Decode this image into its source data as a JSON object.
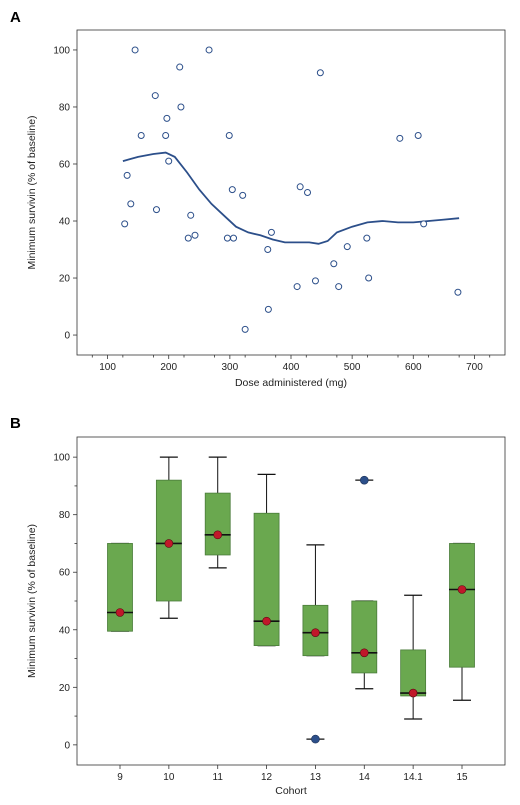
{
  "chart_data": [
    {
      "panel": "A",
      "type": "scatter",
      "xlabel": "Dose administered (mg)",
      "ylabel": "Minimum survivin (% of baseline)",
      "xlim": [
        50,
        750
      ],
      "ylim": [
        -7,
        107
      ],
      "xticks": [
        100,
        200,
        300,
        400,
        500,
        600,
        700
      ],
      "yticks": [
        0,
        20,
        40,
        60,
        80,
        100
      ],
      "grid": false,
      "colors": {
        "marker": "#2c4f8a",
        "curve": "#2c4f8a"
      },
      "points": [
        {
          "x": 128,
          "y": 39
        },
        {
          "x": 132,
          "y": 56
        },
        {
          "x": 138,
          "y": 46
        },
        {
          "x": 145,
          "y": 100
        },
        {
          "x": 155,
          "y": 70
        },
        {
          "x": 178,
          "y": 84
        },
        {
          "x": 180,
          "y": 44
        },
        {
          "x": 195,
          "y": 70
        },
        {
          "x": 197,
          "y": 76
        },
        {
          "x": 200,
          "y": 61
        },
        {
          "x": 218,
          "y": 94
        },
        {
          "x": 220,
          "y": 80
        },
        {
          "x": 232,
          "y": 34
        },
        {
          "x": 236,
          "y": 42
        },
        {
          "x": 243,
          "y": 35
        },
        {
          "x": 266,
          "y": 100
        },
        {
          "x": 296,
          "y": 34
        },
        {
          "x": 299,
          "y": 70
        },
        {
          "x": 304,
          "y": 51
        },
        {
          "x": 306,
          "y": 34
        },
        {
          "x": 321,
          "y": 49
        },
        {
          "x": 325,
          "y": 2
        },
        {
          "x": 362,
          "y": 30
        },
        {
          "x": 363,
          "y": 9
        },
        {
          "x": 368,
          "y": 36
        },
        {
          "x": 410,
          "y": 17
        },
        {
          "x": 415,
          "y": 52
        },
        {
          "x": 427,
          "y": 50
        },
        {
          "x": 440,
          "y": 19
        },
        {
          "x": 448,
          "y": 92
        },
        {
          "x": 470,
          "y": 25
        },
        {
          "x": 478,
          "y": 17
        },
        {
          "x": 492,
          "y": 31
        },
        {
          "x": 524,
          "y": 34
        },
        {
          "x": 527,
          "y": 20
        },
        {
          "x": 578,
          "y": 69
        },
        {
          "x": 608,
          "y": 70
        },
        {
          "x": 617,
          "y": 39
        },
        {
          "x": 673,
          "y": 15
        }
      ],
      "smooth_curve": [
        {
          "x": 125,
          "y": 61
        },
        {
          "x": 150,
          "y": 62.5
        },
        {
          "x": 175,
          "y": 63.5
        },
        {
          "x": 195,
          "y": 64
        },
        {
          "x": 210,
          "y": 62.5
        },
        {
          "x": 230,
          "y": 57
        },
        {
          "x": 250,
          "y": 51
        },
        {
          "x": 270,
          "y": 46
        },
        {
          "x": 290,
          "y": 42
        },
        {
          "x": 310,
          "y": 38
        },
        {
          "x": 330,
          "y": 36
        },
        {
          "x": 350,
          "y": 35
        },
        {
          "x": 370,
          "y": 33.5
        },
        {
          "x": 390,
          "y": 32.5
        },
        {
          "x": 410,
          "y": 32.5
        },
        {
          "x": 430,
          "y": 32.5
        },
        {
          "x": 445,
          "y": 32
        },
        {
          "x": 460,
          "y": 33
        },
        {
          "x": 475,
          "y": 36
        },
        {
          "x": 500,
          "y": 38
        },
        {
          "x": 525,
          "y": 39.5
        },
        {
          "x": 550,
          "y": 40
        },
        {
          "x": 575,
          "y": 39.5
        },
        {
          "x": 600,
          "y": 39.5
        },
        {
          "x": 625,
          "y": 40
        },
        {
          "x": 650,
          "y": 40.5
        },
        {
          "x": 675,
          "y": 41
        }
      ]
    },
    {
      "panel": "B",
      "type": "box",
      "xlabel": "Cohort",
      "ylabel": "Minimum survivin (% of baseline)",
      "ylim": [
        -7,
        107
      ],
      "yticks": [
        0,
        20,
        40,
        60,
        80,
        100
      ],
      "grid": false,
      "colors": {
        "box_fill": "#6aa84f",
        "box_stroke": "#4a7c3a",
        "median_dot": "#c0182a",
        "outlier": "#2c4f8a"
      },
      "categories": [
        "9",
        "10",
        "11",
        "12",
        "13",
        "14",
        "14.1",
        "15"
      ],
      "boxes": [
        {
          "min": 39.5,
          "q1": 39.5,
          "median": 46,
          "q3": 70,
          "max": 70,
          "dot": 46,
          "outliers": []
        },
        {
          "min": 44,
          "q1": 50,
          "median": 70,
          "q3": 92,
          "max": 100,
          "dot": 70,
          "outliers": []
        },
        {
          "min": 61.5,
          "q1": 66,
          "median": 73,
          "q3": 87.5,
          "max": 100,
          "dot": 73,
          "outliers": []
        },
        {
          "min": 34.5,
          "q1": 34.5,
          "median": 43,
          "q3": 80.5,
          "max": 94,
          "dot": 43,
          "outliers": []
        },
        {
          "min": 31,
          "q1": 31,
          "median": 39,
          "q3": 48.5,
          "max": 69.5,
          "dot": 39,
          "outliers": [
            2
          ]
        },
        {
          "min": 19.5,
          "q1": 25,
          "median": 32,
          "q3": 50,
          "max": 50,
          "dot": 32,
          "outliers": [
            92
          ]
        },
        {
          "min": 9,
          "q1": 17,
          "median": 18,
          "q3": 33,
          "max": 52,
          "dot": 18,
          "outliers": []
        },
        {
          "min": 15.5,
          "q1": 27,
          "median": 54,
          "q3": 70,
          "max": 70,
          "dot": 54,
          "outliers": []
        }
      ]
    }
  ],
  "panels": {
    "a_letter": "A",
    "b_letter": "B"
  }
}
